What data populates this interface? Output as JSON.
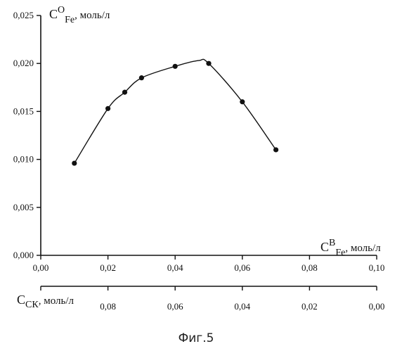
{
  "chart_data": {
    "type": "line",
    "title": "",
    "caption": "Фиг.5",
    "x": [
      0.01,
      0.02,
      0.025,
      0.03,
      0.04,
      0.05,
      0.06,
      0.07
    ],
    "series": [
      {
        "name": "",
        "values": [
          0.0096,
          0.0153,
          0.017,
          0.0185,
          0.0197,
          0.02,
          0.016,
          0.011
        ]
      }
    ],
    "curve_peak": [
      0.047,
      0.0203
    ],
    "xlim": [
      0,
      0.1
    ],
    "ylim": [
      0,
      0.025
    ],
    "x_ticks": [
      0.0,
      0.02,
      0.04,
      0.06,
      0.08,
      0.1
    ],
    "x_tick_labels": [
      "0,00",
      "0,02",
      "0,04",
      "0,06",
      "0,08",
      "0,10"
    ],
    "y_ticks": [
      0.0,
      0.005,
      0.01,
      0.015,
      0.02,
      0.025
    ],
    "y_tick_labels": [
      "0,000",
      "0,005",
      "0,010",
      "0,015",
      "0,020",
      "0,025"
    ],
    "ylabel": {
      "base": "C",
      "sup": "O",
      "sub": "Fe",
      "unit": ", моль/л"
    },
    "xlabel": {
      "base": "C",
      "sup": "B",
      "sub": "Fe",
      "unit": ", моль/л"
    },
    "secondary_x_axis": {
      "label": {
        "base": "C",
        "sub": "СК",
        "unit": ", моль/л"
      },
      "ticks": [
        0.1,
        0.08,
        0.06,
        0.04,
        0.02,
        0.0
      ],
      "tick_labels": [
        "",
        "0,08",
        "0,06",
        "0,04",
        "0,02",
        "0,00"
      ]
    },
    "grid": false,
    "legend": "none"
  }
}
